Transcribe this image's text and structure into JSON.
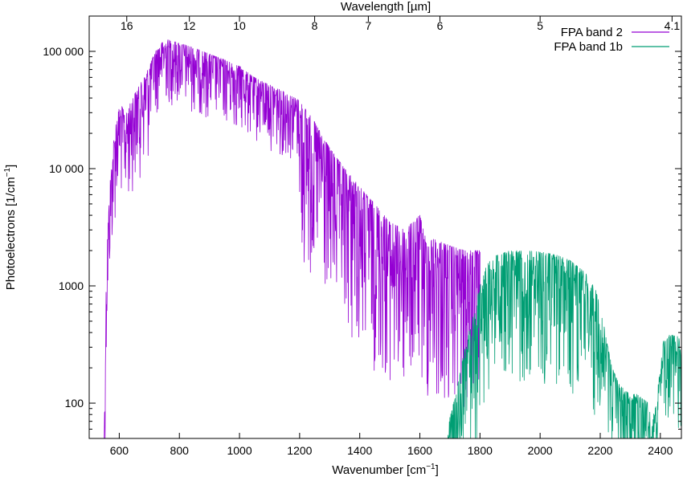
{
  "chart_data": {
    "type": "line",
    "x_axis": {
      "label_main": "Wavenumber [cm",
      "label_sup": "−1",
      "label_end": "]",
      "range": [
        500,
        2470
      ],
      "ticks": [
        {
          "value": 600,
          "label": "600"
        },
        {
          "value": 800,
          "label": "800"
        },
        {
          "value": 1000,
          "label": "1000"
        },
        {
          "value": 1200,
          "label": "1200"
        },
        {
          "value": 1400,
          "label": "1400"
        },
        {
          "value": 1600,
          "label": "1600"
        },
        {
          "value": 1800,
          "label": "1800"
        },
        {
          "value": 2000,
          "label": "2000"
        },
        {
          "value": 2200,
          "label": "2200"
        },
        {
          "value": 2400,
          "label": "2400"
        }
      ]
    },
    "x2_axis": {
      "label": "Wavelength [µm]",
      "ticks": [
        {
          "wavenumber": 625,
          "label": "16"
        },
        {
          "wavenumber": 833.3,
          "label": "12"
        },
        {
          "wavenumber": 1000,
          "label": "10"
        },
        {
          "wavenumber": 1250,
          "label": "8"
        },
        {
          "wavenumber": 1428.6,
          "label": "7"
        },
        {
          "wavenumber": 1666.7,
          "label": "6"
        },
        {
          "wavenumber": 2000,
          "label": "5"
        },
        {
          "wavenumber": 2439,
          "label": "4.1"
        }
      ]
    },
    "y_axis": {
      "label_main": "Photoelectrons [1/cm",
      "label_sup": "−1",
      "label_end": "]",
      "scale": "log",
      "range": [
        50,
        200000
      ],
      "ticks": [
        {
          "value": 100,
          "label": "100"
        },
        {
          "value": 1000,
          "label": "1000"
        },
        {
          "value": 10000,
          "label": "10 000"
        },
        {
          "value": 100000,
          "label": "100 000"
        }
      ]
    },
    "grid": false,
    "legend_position": "top-right",
    "series": [
      {
        "name": "FPA band 2",
        "color": "#9400d3",
        "x_range": [
          550,
          1800
        ],
        "envelope": [
          [
            550,
            55
          ],
          [
            555,
            700
          ],
          [
            560,
            2500
          ],
          [
            570,
            8000
          ],
          [
            580,
            16000
          ],
          [
            590,
            26000
          ],
          [
            600,
            33000
          ],
          [
            610,
            34000
          ],
          [
            620,
            28000
          ],
          [
            640,
            38000
          ],
          [
            660,
            48000
          ],
          [
            680,
            58000
          ],
          [
            700,
            75000
          ],
          [
            720,
            100000
          ],
          [
            740,
            118000
          ],
          [
            760,
            126000
          ],
          [
            800,
            118000
          ],
          [
            850,
            107000
          ],
          [
            900,
            95000
          ],
          [
            950,
            85000
          ],
          [
            980,
            78000
          ],
          [
            1000,
            75000
          ],
          [
            1040,
            62000
          ],
          [
            1060,
            58000
          ],
          [
            1100,
            52000
          ],
          [
            1150,
            45000
          ],
          [
            1200,
            38000
          ],
          [
            1250,
            25000
          ],
          [
            1300,
            15000
          ],
          [
            1350,
            10000
          ],
          [
            1400,
            7000
          ],
          [
            1450,
            5000
          ],
          [
            1500,
            3500
          ],
          [
            1550,
            3000
          ],
          [
            1590,
            3800
          ],
          [
            1600,
            4000
          ],
          [
            1620,
            2500
          ],
          [
            1650,
            2500
          ],
          [
            1700,
            2200
          ],
          [
            1750,
            2000
          ],
          [
            1800,
            2000
          ]
        ]
      },
      {
        "name": "FPA band 1b",
        "color": "#009e73",
        "x_range": [
          1690,
          2470
        ],
        "envelope": [
          [
            1690,
            60
          ],
          [
            1720,
            120
          ],
          [
            1750,
            300
          ],
          [
            1780,
            600
          ],
          [
            1800,
            1000
          ],
          [
            1820,
            1500
          ],
          [
            1850,
            1800
          ],
          [
            1900,
            2000
          ],
          [
            1950,
            2000
          ],
          [
            2000,
            1950
          ],
          [
            2050,
            1850
          ],
          [
            2100,
            1650
          ],
          [
            2150,
            1300
          ],
          [
            2180,
            1000
          ],
          [
            2200,
            700
          ],
          [
            2220,
            350
          ],
          [
            2240,
            200
          ],
          [
            2260,
            150
          ],
          [
            2280,
            130
          ],
          [
            2300,
            120
          ],
          [
            2320,
            120
          ],
          [
            2340,
            110
          ],
          [
            2360,
            100
          ],
          [
            2380,
            80
          ],
          [
            2400,
            200
          ],
          [
            2410,
            340
          ],
          [
            2430,
            380
          ],
          [
            2450,
            380
          ],
          [
            2470,
            360
          ]
        ]
      }
    ]
  }
}
